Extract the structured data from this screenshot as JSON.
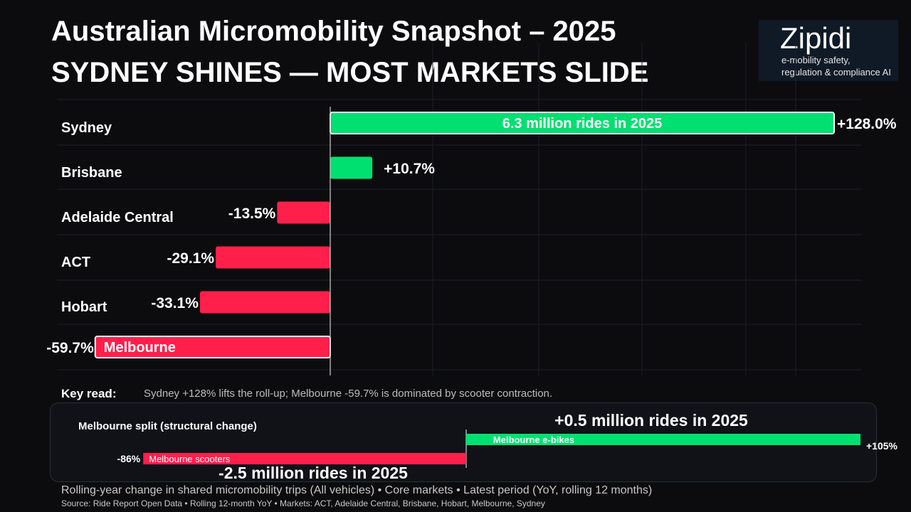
{
  "title": {
    "line1": "Australian Micromobility Snapshot – 2025",
    "line2": "SYDNEY SHINES — MOST MARKETS SLIDE"
  },
  "logo": {
    "brand": "Zipidi",
    "tagline_line1": "e-mobility safety,",
    "tagline_line2": "regulation & compliance AI"
  },
  "colors": {
    "positive": "#00e070",
    "negative": "#ff1f4b",
    "background": "#0c0c0f"
  },
  "chart_data": [
    {
      "type": "bar",
      "orientation": "horizontal",
      "title": "SYDNEY SHINES — MOST MARKETS SLIDE",
      "categories": [
        "Sydney",
        "Brisbane",
        "Adelaide Central",
        "ACT",
        "Hobart",
        "Melbourne"
      ],
      "values": [
        128.0,
        10.7,
        -13.5,
        -29.1,
        -33.1,
        -59.7
      ],
      "value_labels": [
        "+128.0%",
        "+10.7%",
        "-13.5%",
        "-29.1%",
        "-33.1%",
        "-59.7%"
      ],
      "inner_labels": [
        "6.3 million rides in 2025",
        "",
        "",
        "",
        "",
        "Melbourne"
      ],
      "unit": "% YoY change",
      "xlim": [
        -60,
        130
      ]
    },
    {
      "type": "bar",
      "orientation": "horizontal",
      "title": "Melbourne split (structural change)",
      "categories": [
        "Melbourne e-bikes",
        "Melbourne scooters"
      ],
      "values": [
        105,
        -86
      ],
      "value_labels": [
        "+105%",
        "-86%"
      ],
      "annotations": [
        "+0.5 million rides in 2025",
        "-2.5 million rides in 2025"
      ],
      "xlim": [
        -90,
        107
      ]
    }
  ],
  "key_read": {
    "label": "Key read:",
    "text": "Sydney +128% lifts the roll-up; Melbourne -59.7% is dominated by scooter contraction."
  },
  "footer": {
    "line1": "Rolling-year change in shared micromobility trips (All vehicles) • Core markets • Latest period (YoY, rolling 12 months)",
    "line2": "Source: Ride Report Open Data • Rolling 12-month YoY • Markets: ACT, Adelaide Central, Brisbane, Hobart, Melbourne, Sydney"
  }
}
